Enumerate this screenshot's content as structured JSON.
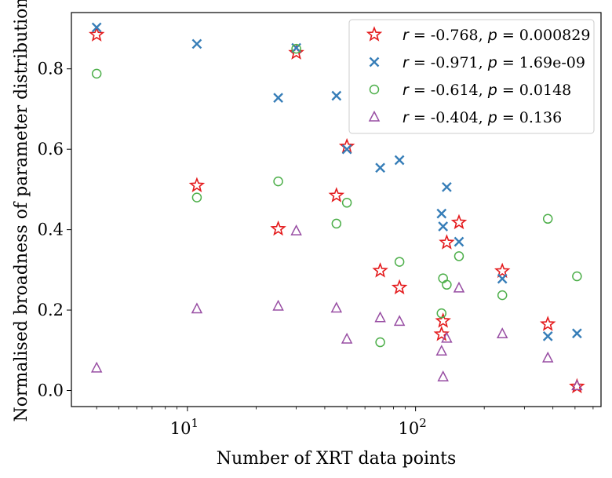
{
  "chart_data": {
    "type": "scatter",
    "title": "",
    "xlabel": "Number of XRT data points",
    "ylabel": "Normalised broadness of parameter distribution",
    "xscale": "log",
    "xlim": [
      3.1,
      650
    ],
    "ylim": [
      -0.04,
      0.94
    ],
    "xticks": [
      {
        "value": 10,
        "base": "10",
        "exp": "1"
      },
      {
        "value": 100,
        "base": "10",
        "exp": "2"
      }
    ],
    "yticks": [
      {
        "value": 0.0,
        "label": "0.0"
      },
      {
        "value": 0.2,
        "label": "0.2"
      },
      {
        "value": 0.4,
        "label": "0.4"
      },
      {
        "value": 0.6,
        "label": "0.6"
      },
      {
        "value": 0.8,
        "label": "0.8"
      }
    ],
    "grid": false,
    "legend_position": "top-right",
    "series": [
      {
        "name": "s1",
        "marker": "star",
        "color": "#e41a1c",
        "legend": {
          "r_sym": "r",
          "r_text": " = -0.768, ",
          "p_sym": "p",
          "p_text": " = 0.000829"
        },
        "points": [
          [
            4,
            0.885
          ],
          [
            11,
            0.51
          ],
          [
            25,
            0.402
          ],
          [
            30,
            0.84
          ],
          [
            45,
            0.485
          ],
          [
            50,
            0.607
          ],
          [
            70,
            0.298
          ],
          [
            85,
            0.256
          ],
          [
            130,
            0.14
          ],
          [
            132,
            0.173
          ],
          [
            137,
            0.368
          ],
          [
            155,
            0.418
          ],
          [
            240,
            0.297
          ],
          [
            380,
            0.165
          ],
          [
            510,
            0.01
          ]
        ]
      },
      {
        "name": "s2",
        "marker": "x",
        "color": "#377eb8",
        "legend": {
          "r_sym": "r",
          "r_text": " = -0.971, ",
          "p_sym": "p",
          "p_text": " = 1.69e-09"
        },
        "points": [
          [
            4,
            0.903
          ],
          [
            11,
            0.862
          ],
          [
            25,
            0.728
          ],
          [
            30,
            0.852
          ],
          [
            45,
            0.733
          ],
          [
            50,
            0.6
          ],
          [
            70,
            0.554
          ],
          [
            85,
            0.573
          ],
          [
            130,
            0.44
          ],
          [
            132,
            0.408
          ],
          [
            137,
            0.506
          ],
          [
            155,
            0.37
          ],
          [
            240,
            0.278
          ],
          [
            380,
            0.135
          ],
          [
            510,
            0.142
          ]
        ]
      },
      {
        "name": "s3",
        "marker": "circle",
        "color": "#4daf4a",
        "legend": {
          "r_sym": "r",
          "r_text": " = -0.614, ",
          "p_sym": "p",
          "p_text": " = 0.0148"
        },
        "points": [
          [
            4,
            0.788
          ],
          [
            11,
            0.48
          ],
          [
            25,
            0.52
          ],
          [
            30,
            0.85
          ],
          [
            45,
            0.415
          ],
          [
            50,
            0.467
          ],
          [
            70,
            0.12
          ],
          [
            85,
            0.32
          ],
          [
            130,
            0.192
          ],
          [
            132,
            0.279
          ],
          [
            137,
            0.263
          ],
          [
            155,
            0.334
          ],
          [
            240,
            0.237
          ],
          [
            380,
            0.427
          ],
          [
            510,
            0.284
          ]
        ]
      },
      {
        "name": "s4",
        "marker": "triangle",
        "color": "#984ea3",
        "legend": {
          "r_sym": "r",
          "r_text": " = -0.404, ",
          "p_sym": "p",
          "p_text": " = 0.136"
        },
        "points": [
          [
            4,
            0.056
          ],
          [
            11,
            0.203
          ],
          [
            25,
            0.21
          ],
          [
            30,
            0.397
          ],
          [
            45,
            0.205
          ],
          [
            50,
            0.128
          ],
          [
            70,
            0.181
          ],
          [
            85,
            0.172
          ],
          [
            130,
            0.098
          ],
          [
            132,
            0.034
          ],
          [
            137,
            0.13
          ],
          [
            155,
            0.255
          ],
          [
            240,
            0.141
          ],
          [
            380,
            0.081
          ],
          [
            510,
            0.012
          ]
        ]
      }
    ]
  }
}
